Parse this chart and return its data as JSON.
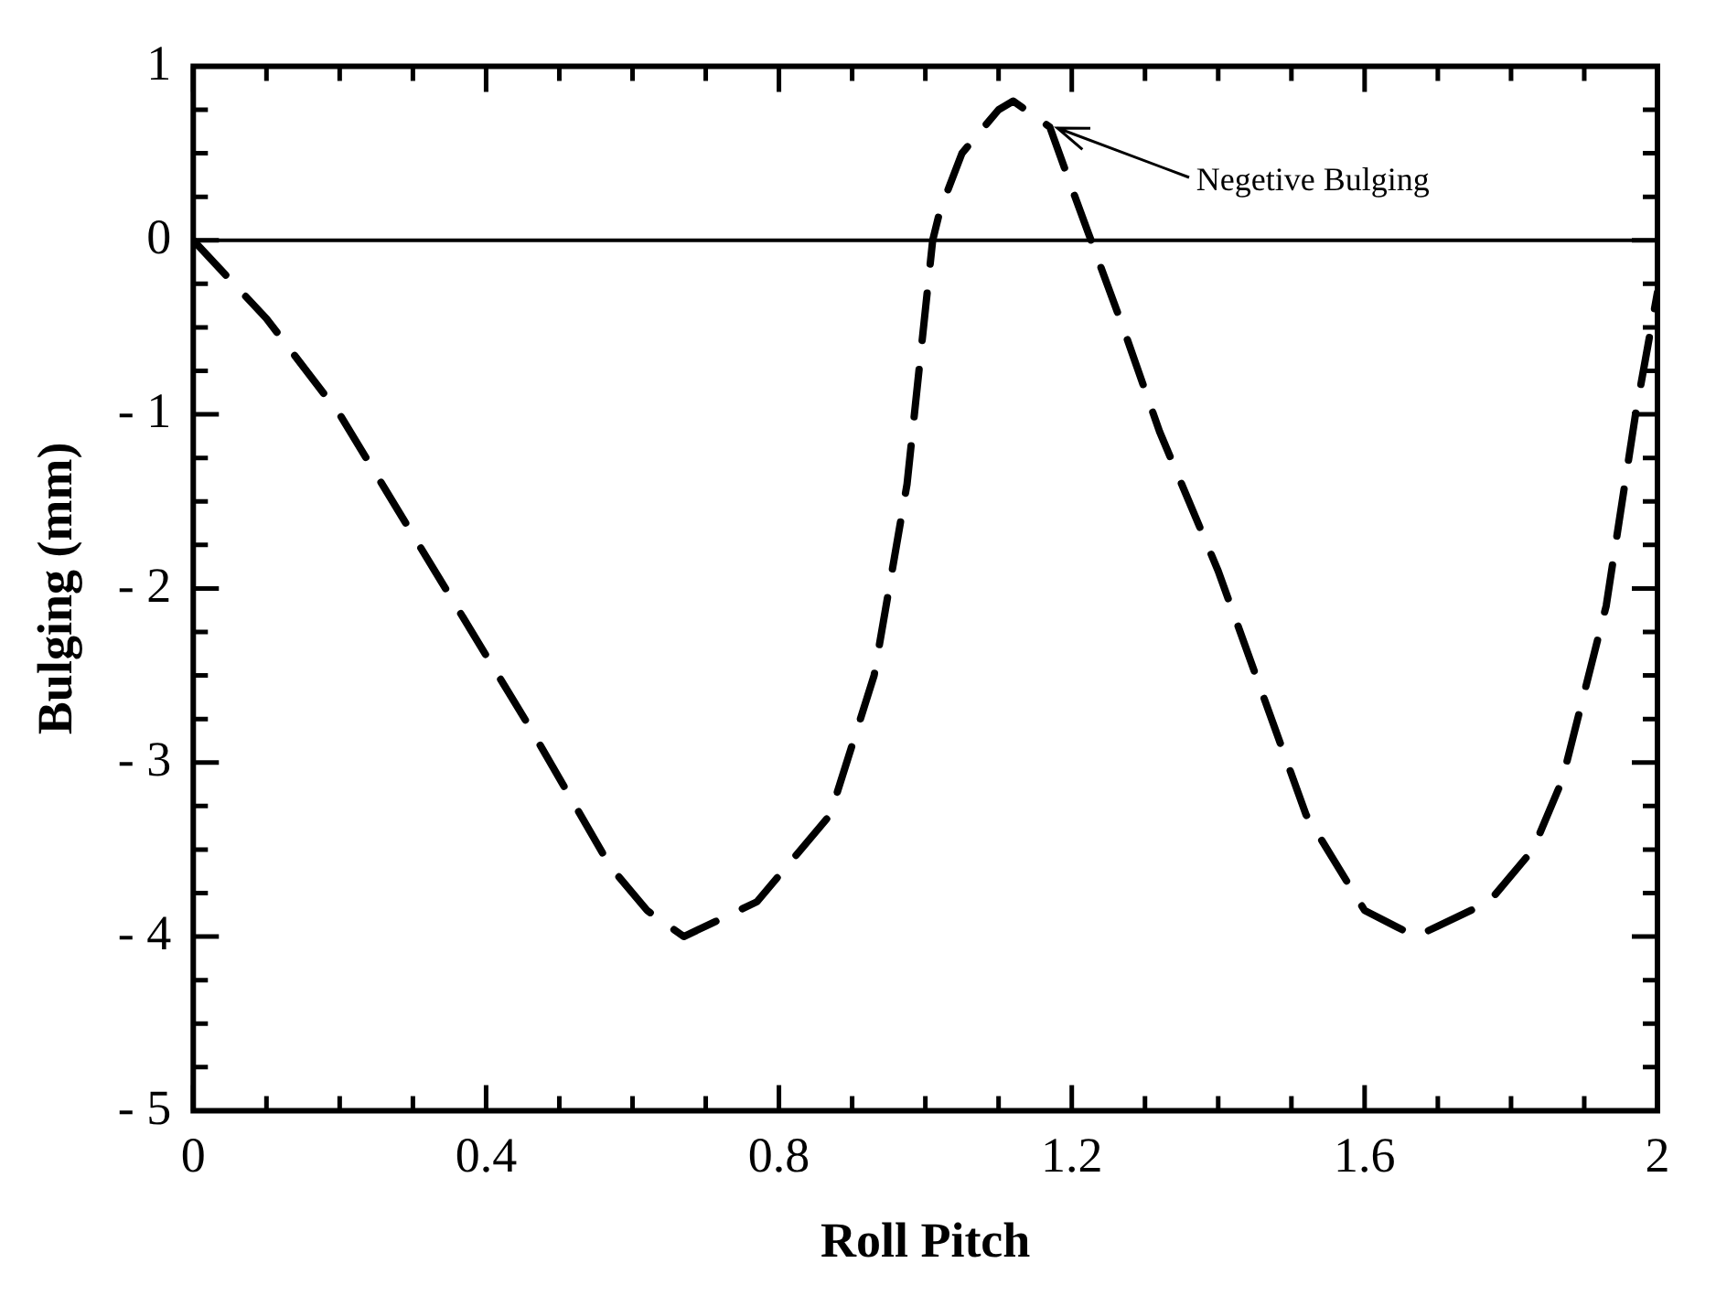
{
  "chart_data": {
    "type": "line",
    "xlabel": "Roll Pitch",
    "ylabel": "Bulging (mm)",
    "x": [
      0,
      0.1,
      0.2,
      0.33,
      0.46,
      0.57,
      0.62,
      0.67,
      0.77,
      0.87,
      0.93,
      0.975,
      1.01,
      1.02,
      1.05,
      1.1,
      1.12,
      1.17,
      1.2,
      1.27,
      1.32,
      1.4,
      1.46,
      1.52,
      1.6,
      1.67,
      1.77,
      1.83,
      1.87,
      1.93,
      1.97,
      2
    ],
    "series": [
      {
        "color": "#000000",
        "line_style": "dashed",
        "values": [
          0,
          -0.45,
          -1.0,
          -1.9,
          -2.8,
          -3.6,
          -3.85,
          -4.0,
          -3.8,
          -3.3,
          -2.5,
          -1.4,
          0,
          0.17,
          0.5,
          0.75,
          0.8,
          0.65,
          0.3,
          -0.5,
          -1.1,
          -1.9,
          -2.6,
          -3.3,
          -3.85,
          -4.0,
          -3.8,
          -3.5,
          -3.1,
          -2.1,
          -1.0,
          -0.3
        ]
      }
    ],
    "xlim": [
      0,
      2
    ],
    "xticks": [
      0,
      0.4,
      0.8,
      1.2,
      1.6,
      2
    ],
    "ylim": [
      -5,
      1
    ],
    "yticks": [
      {
        "value": -5,
        "label": "- 5"
      },
      {
        "value": -4,
        "label": "- 4"
      },
      {
        "value": -3,
        "label": "- 3"
      },
      {
        "value": -2,
        "label": "- 2"
      },
      {
        "value": -1,
        "label": "- 1"
      },
      0,
      1
    ],
    "ref_lines": [
      {
        "axis": "y",
        "value": 0,
        "color": "#000000"
      }
    ],
    "annotations": [
      {
        "text": "Negetive Bulging",
        "x": 1.17,
        "y": 0.65
      }
    ],
    "grid": false,
    "legend": false,
    "marker": "none"
  }
}
